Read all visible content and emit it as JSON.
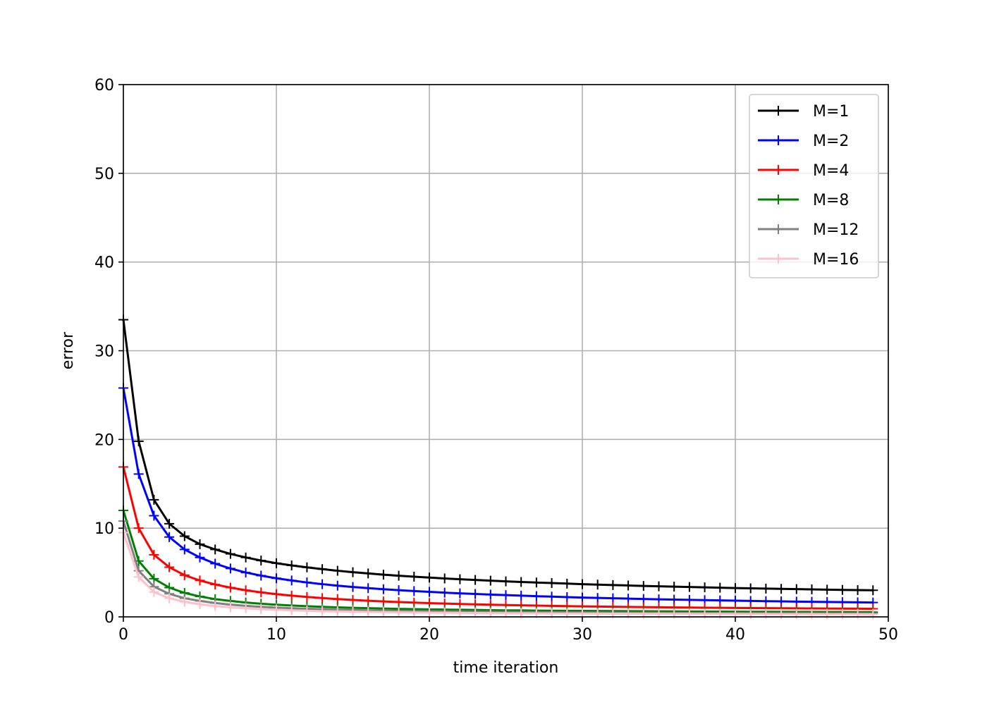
{
  "chart_data": {
    "type": "line",
    "title": "",
    "xlabel": "time iteration",
    "ylabel": "error",
    "xlim": [
      0,
      50
    ],
    "ylim": [
      0,
      60
    ],
    "xticks": [
      "0",
      "10",
      "20",
      "30",
      "40",
      "50"
    ],
    "yticks": [
      "0",
      "10",
      "20",
      "30",
      "40",
      "50",
      "60"
    ],
    "grid": true,
    "legend_position": "top-right",
    "marker": "+",
    "x": [
      0,
      1,
      2,
      3,
      4,
      5,
      6,
      7,
      8,
      9,
      10,
      11,
      12,
      13,
      14,
      15,
      16,
      17,
      18,
      19,
      20,
      21,
      22,
      23,
      24,
      25,
      26,
      27,
      28,
      29,
      30,
      31,
      32,
      33,
      34,
      35,
      36,
      37,
      38,
      39,
      40,
      41,
      42,
      43,
      44,
      45,
      46,
      47,
      48,
      49
    ],
    "series": [
      {
        "name": "M=1",
        "color": "#000000",
        "values": [
          33.5,
          19.8,
          13.2,
          10.5,
          9.1,
          8.2,
          7.6,
          7.1,
          6.7,
          6.35,
          6.05,
          5.8,
          5.58,
          5.38,
          5.2,
          5.04,
          4.9,
          4.76,
          4.64,
          4.53,
          4.43,
          4.33,
          4.24,
          4.16,
          4.08,
          4.0,
          3.93,
          3.87,
          3.81,
          3.75,
          3.69,
          3.64,
          3.59,
          3.54,
          3.49,
          3.45,
          3.41,
          3.37,
          3.33,
          3.29,
          3.25,
          3.22,
          3.19,
          3.16,
          3.13,
          3.1,
          3.07,
          3.04,
          3.02,
          3.0
        ]
      },
      {
        "name": "M=2",
        "color": "#0000ff",
        "values": [
          25.8,
          16.1,
          11.4,
          9.0,
          7.6,
          6.7,
          6.0,
          5.45,
          5.0,
          4.65,
          4.35,
          4.1,
          3.88,
          3.69,
          3.52,
          3.37,
          3.24,
          3.12,
          3.01,
          2.91,
          2.82,
          2.73,
          2.65,
          2.58,
          2.51,
          2.45,
          2.39,
          2.33,
          2.28,
          2.23,
          2.18,
          2.14,
          2.1,
          2.06,
          2.02,
          1.98,
          1.95,
          1.92,
          1.89,
          1.86,
          1.83,
          1.8,
          1.77,
          1.75,
          1.72,
          1.7,
          1.68,
          1.66,
          1.64,
          1.62
        ]
      },
      {
        "name": "M=4",
        "color": "#ff0000",
        "values": [
          16.9,
          10.0,
          7.0,
          5.6,
          4.7,
          4.1,
          3.65,
          3.3,
          3.0,
          2.76,
          2.56,
          2.39,
          2.25,
          2.12,
          2.01,
          1.91,
          1.82,
          1.74,
          1.67,
          1.61,
          1.55,
          1.5,
          1.45,
          1.41,
          1.37,
          1.33,
          1.3,
          1.27,
          1.24,
          1.21,
          1.18,
          1.16,
          1.14,
          1.12,
          1.1,
          1.08,
          1.06,
          1.05,
          1.03,
          1.02,
          1.0,
          0.99,
          0.98,
          0.97,
          0.96,
          0.95,
          0.94,
          0.93,
          0.92,
          0.91
        ]
      },
      {
        "name": "M=8",
        "color": "#008000",
        "values": [
          12.0,
          6.3,
          4.3,
          3.3,
          2.7,
          2.3,
          2.0,
          1.8,
          1.62,
          1.48,
          1.37,
          1.28,
          1.2,
          1.13,
          1.07,
          1.02,
          0.98,
          0.94,
          0.9,
          0.87,
          0.84,
          0.82,
          0.8,
          0.78,
          0.76,
          0.74,
          0.73,
          0.71,
          0.7,
          0.69,
          0.68,
          0.67,
          0.66,
          0.65,
          0.64,
          0.63,
          0.62,
          0.61,
          0.6,
          0.6,
          0.59,
          0.58,
          0.58,
          0.57,
          0.56,
          0.56,
          0.55,
          0.55,
          0.54,
          0.54
        ]
      },
      {
        "name": "M=12",
        "color": "#808080",
        "values": [
          10.8,
          5.2,
          3.4,
          2.6,
          2.1,
          1.8,
          1.56,
          1.38,
          1.24,
          1.13,
          1.04,
          0.97,
          0.91,
          0.86,
          0.81,
          0.77,
          0.74,
          0.71,
          0.68,
          0.66,
          0.64,
          0.62,
          0.6,
          0.58,
          0.57,
          0.55,
          0.54,
          0.53,
          0.52,
          0.51,
          0.5,
          0.49,
          0.48,
          0.47,
          0.47,
          0.46,
          0.45,
          0.45,
          0.44,
          0.43,
          0.43,
          0.42,
          0.42,
          0.41,
          0.41,
          0.4,
          0.4,
          0.39,
          0.39,
          0.39
        ]
      },
      {
        "name": "M=16",
        "color": "#ffc0cb",
        "values": [
          9.5,
          4.5,
          2.8,
          2.1,
          1.7,
          1.42,
          1.22,
          1.07,
          0.96,
          0.87,
          0.8,
          0.74,
          0.69,
          0.65,
          0.62,
          0.59,
          0.56,
          0.54,
          0.52,
          0.5,
          0.48,
          0.47,
          0.45,
          0.44,
          0.43,
          0.42,
          0.41,
          0.4,
          0.39,
          0.38,
          0.38,
          0.37,
          0.36,
          0.36,
          0.35,
          0.35,
          0.34,
          0.34,
          0.33,
          0.33,
          0.32,
          0.32,
          0.32,
          0.31,
          0.31,
          0.31,
          0.3,
          0.3,
          0.3,
          0.29
        ]
      }
    ]
  }
}
